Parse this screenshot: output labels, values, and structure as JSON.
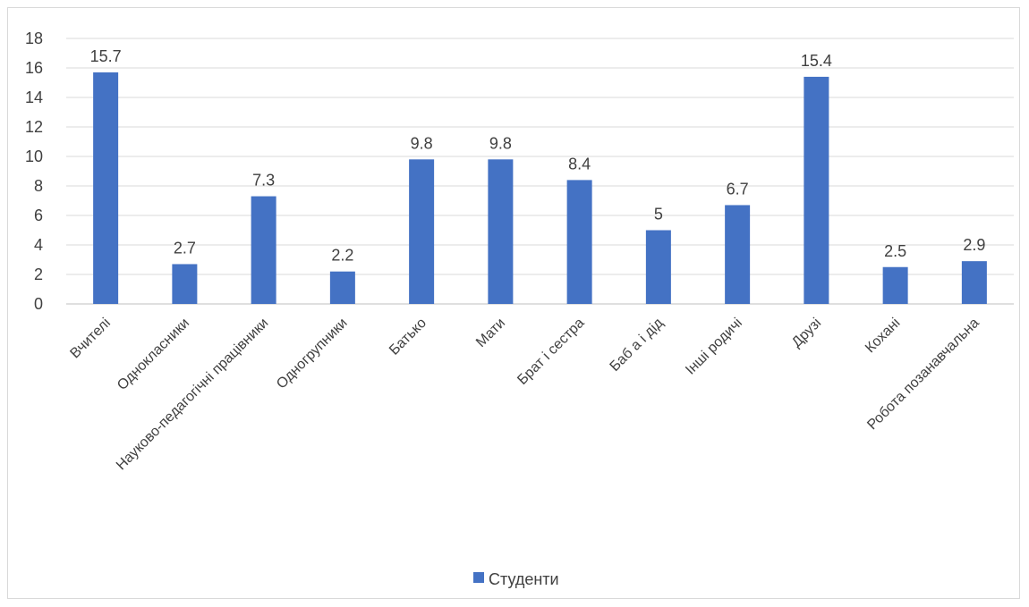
{
  "chart_data": {
    "type": "bar",
    "categories": [
      "Вчителі",
      "Однокласники",
      "Науково-педагогічні працівники",
      "Одногрупники",
      "Батько",
      "Мати",
      "Брат і сестра",
      "Баб а і дід",
      "Інші родичі",
      "Друзі",
      "Кохані",
      "Робота позанавчальна"
    ],
    "series": [
      {
        "name": "Студенти",
        "values": [
          15.7,
          2.7,
          7.3,
          2.2,
          9.8,
          9.8,
          8.4,
          5,
          6.7,
          15.4,
          2.5,
          2.9
        ],
        "color": "#4472C4"
      }
    ],
    "data_labels": [
      "15.7",
      "2.7",
      "7.3",
      "2.2",
      "9.8",
      "9.8",
      "8.4",
      "5",
      "6.7",
      "15.4",
      "2.5",
      "2.9"
    ],
    "y_ticks": [
      "0",
      "2",
      "4",
      "6",
      "8",
      "10",
      "12",
      "14",
      "16",
      "18"
    ],
    "ylim": [
      0,
      18
    ],
    "grid": true,
    "legend_position": "bottom",
    "title": "",
    "xlabel": "",
    "ylabel": ""
  },
  "legend": {
    "label": "Студенти"
  }
}
